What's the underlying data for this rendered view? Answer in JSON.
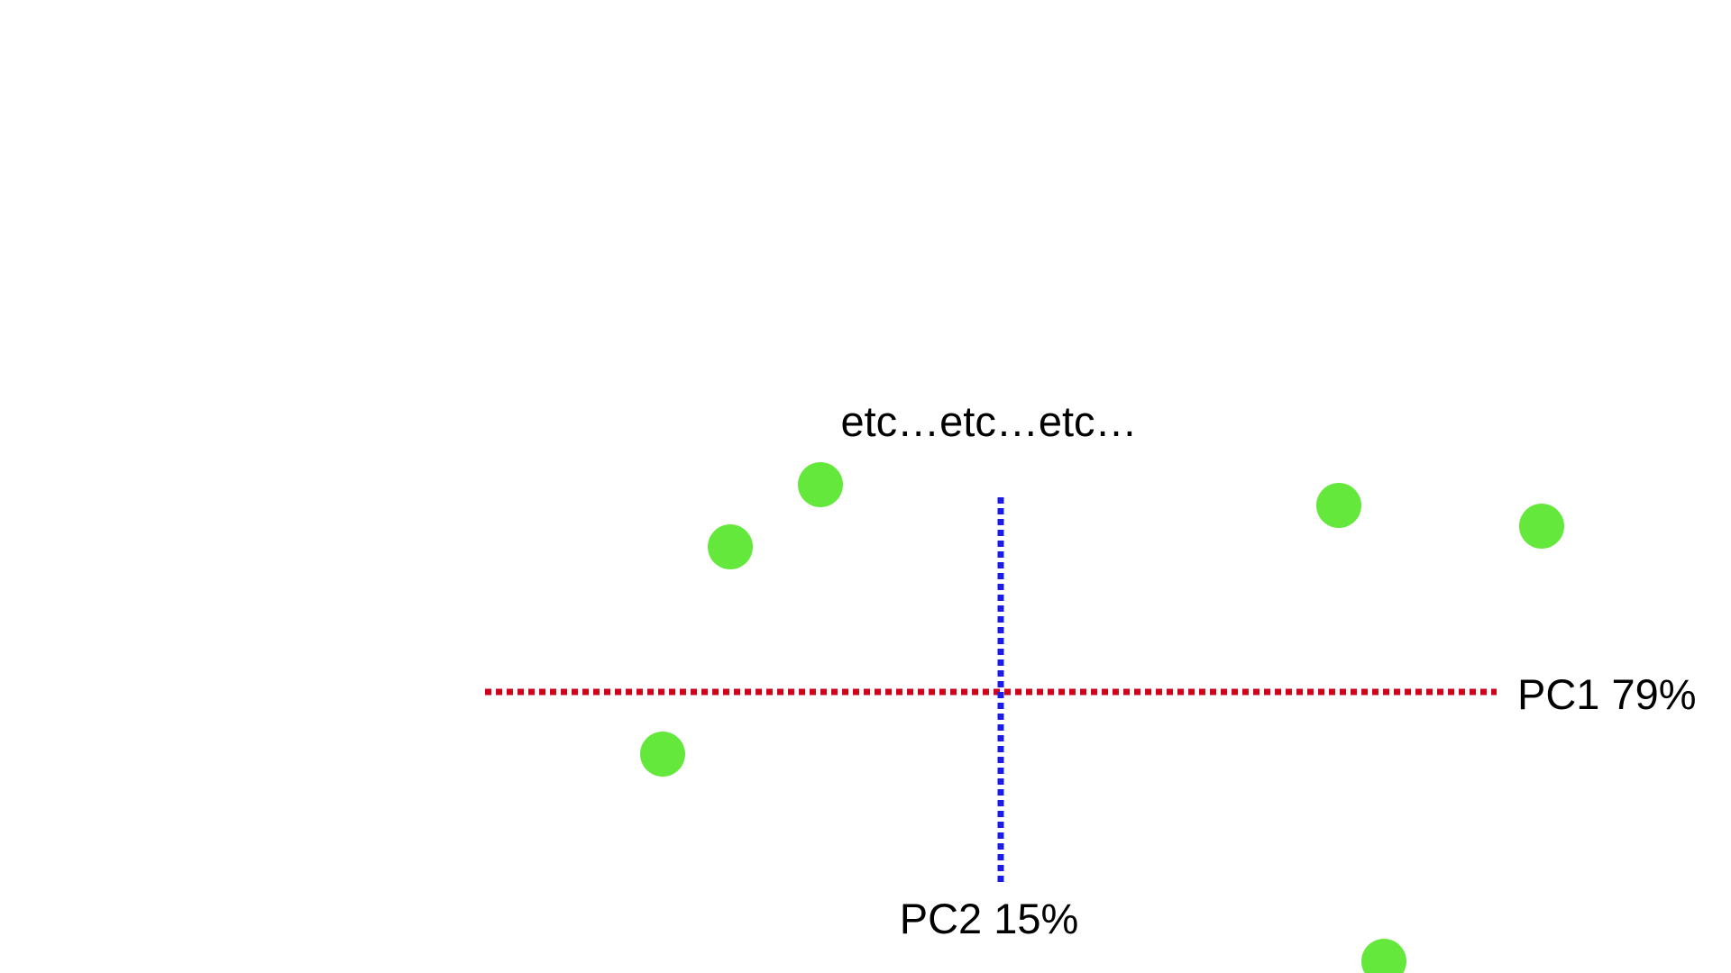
{
  "chart_data": {
    "type": "scatter",
    "annotation": "etc…etc…etc…",
    "axes": {
      "pc1": {
        "label": "PC1 79%",
        "color": "#d0021b",
        "range": [
          -2.0,
          4.0
        ]
      },
      "pc2": {
        "label": "PC2 15%",
        "color": "#1b1be8",
        "range": [
          -2.0,
          2.0
        ]
      }
    },
    "point_color": "#65e83c",
    "points": [
      {
        "x": -1.2,
        "y": 0.7
      },
      {
        "x": -0.8,
        "y": 1.0
      },
      {
        "x": -1.5,
        "y": -0.3
      },
      {
        "x": 1.5,
        "y": 0.9
      },
      {
        "x": 2.4,
        "y": 0.8
      },
      {
        "x": 1.7,
        "y": -1.3
      }
    ]
  }
}
